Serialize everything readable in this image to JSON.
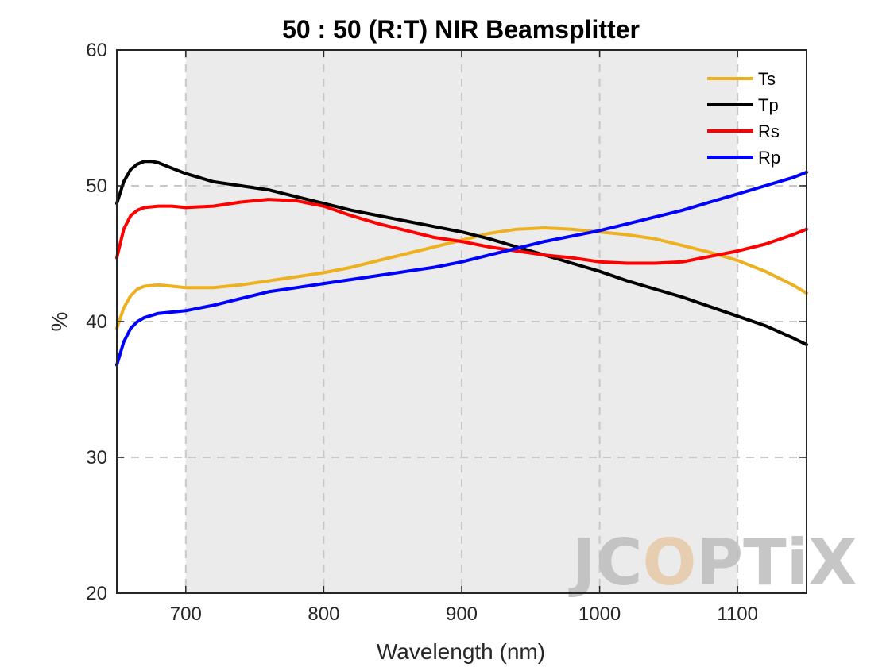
{
  "chart_data": {
    "type": "line",
    "title": "50 : 50 (R:T) NIR Beamsplitter",
    "xlabel": "Wavelength (nm)",
    "ylabel": "%",
    "xlim": [
      650,
      1150
    ],
    "ylim": [
      20,
      60
    ],
    "xticks": [
      700,
      800,
      900,
      1000,
      1100
    ],
    "yticks": [
      20,
      30,
      40,
      50,
      60
    ],
    "grid": true,
    "shaded_band": [
      700,
      1100
    ],
    "legend_position": "top-right",
    "series": [
      {
        "name": "Ts",
        "color": "#EDB120",
        "x": [
          650,
          655,
          660,
          665,
          670,
          680,
          690,
          700,
          720,
          740,
          760,
          780,
          800,
          820,
          840,
          860,
          880,
          900,
          920,
          940,
          960,
          980,
          1000,
          1020,
          1040,
          1060,
          1080,
          1100,
          1120,
          1140,
          1150
        ],
        "y": [
          39.5,
          41.0,
          41.9,
          42.4,
          42.6,
          42.7,
          42.6,
          42.5,
          42.5,
          42.7,
          43.0,
          43.3,
          43.6,
          44.0,
          44.5,
          45.0,
          45.5,
          46.0,
          46.5,
          46.8,
          46.9,
          46.8,
          46.6,
          46.4,
          46.1,
          45.6,
          45.1,
          44.5,
          43.7,
          42.7,
          42.1
        ]
      },
      {
        "name": "Tp",
        "color": "#000000",
        "x": [
          650,
          655,
          660,
          665,
          670,
          675,
          680,
          690,
          700,
          720,
          740,
          760,
          780,
          800,
          820,
          840,
          860,
          880,
          900,
          920,
          940,
          960,
          980,
          1000,
          1020,
          1040,
          1060,
          1080,
          1100,
          1120,
          1140,
          1150
        ],
        "y": [
          48.7,
          50.3,
          51.2,
          51.6,
          51.8,
          51.8,
          51.7,
          51.3,
          50.9,
          50.3,
          50.0,
          49.7,
          49.2,
          48.7,
          48.2,
          47.8,
          47.4,
          47.0,
          46.6,
          46.1,
          45.5,
          44.9,
          44.3,
          43.7,
          43.0,
          42.4,
          41.8,
          41.1,
          40.4,
          39.7,
          38.8,
          38.3
        ]
      },
      {
        "name": "Rs",
        "color": "#FF0000",
        "x": [
          650,
          655,
          660,
          665,
          670,
          680,
          690,
          700,
          720,
          740,
          760,
          780,
          800,
          820,
          840,
          860,
          880,
          900,
          920,
          940,
          960,
          980,
          1000,
          1020,
          1040,
          1060,
          1080,
          1100,
          1120,
          1140,
          1150
        ],
        "y": [
          44.7,
          46.8,
          47.8,
          48.2,
          48.4,
          48.5,
          48.5,
          48.4,
          48.5,
          48.8,
          49.0,
          48.9,
          48.5,
          47.8,
          47.2,
          46.7,
          46.2,
          45.9,
          45.5,
          45.2,
          44.9,
          44.7,
          44.4,
          44.3,
          44.3,
          44.4,
          44.8,
          45.2,
          45.7,
          46.4,
          46.8
        ]
      },
      {
        "name": "Rp",
        "color": "#0000FF",
        "x": [
          650,
          655,
          660,
          665,
          670,
          680,
          690,
          700,
          720,
          740,
          760,
          780,
          800,
          820,
          840,
          860,
          880,
          900,
          920,
          940,
          960,
          980,
          1000,
          1020,
          1040,
          1060,
          1080,
          1100,
          1120,
          1140,
          1150
        ],
        "y": [
          36.8,
          38.5,
          39.5,
          40.0,
          40.3,
          40.6,
          40.7,
          40.8,
          41.2,
          41.7,
          42.2,
          42.5,
          42.8,
          43.1,
          43.4,
          43.7,
          44.0,
          44.4,
          44.9,
          45.4,
          45.9,
          46.3,
          46.7,
          47.2,
          47.7,
          48.2,
          48.8,
          49.4,
          50.0,
          50.6,
          51.0
        ]
      }
    ]
  },
  "watermark": {
    "text": "JCOPTiX",
    "parts": [
      "JC",
      "O",
      "PT",
      "i",
      "X"
    ],
    "color": "#bdbdbd",
    "accent_color": "#e8c9a8"
  }
}
